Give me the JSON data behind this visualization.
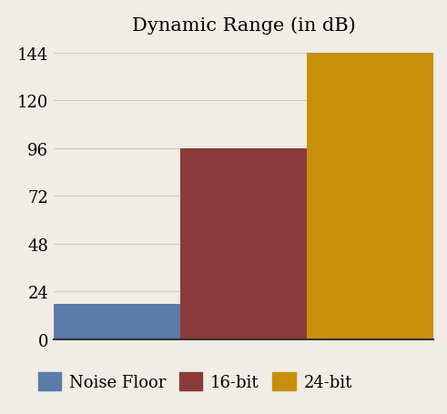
{
  "title": "Dynamic Range (in dB)",
  "categories": [
    "Noise Floor",
    "16-bit",
    "24-bit"
  ],
  "values": [
    18,
    96,
    144
  ],
  "bar_colors": [
    "#5b7ba8",
    "#8b3a3a",
    "#c8900a"
  ],
  "yticks": [
    0,
    24,
    48,
    72,
    96,
    120,
    144
  ],
  "ylim": [
    0,
    150
  ],
  "bar_width": 1.0,
  "background_color": "#f0ece6",
  "title_fontsize": 15,
  "tick_fontsize": 13,
  "legend_fontsize": 13
}
